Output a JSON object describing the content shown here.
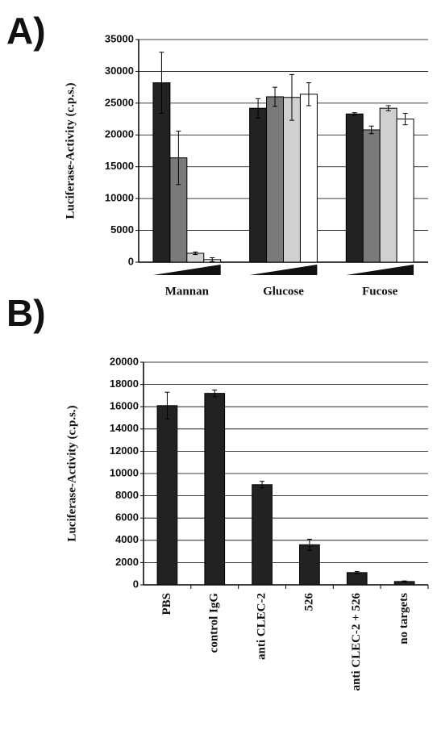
{
  "chart_data": [
    {
      "type": "bar",
      "panel_label": "A)",
      "y_label": "Luciferase-Activity (c.p.s.)",
      "categories": [
        "Mannan",
        "Glucose",
        "Fucose"
      ],
      "series": [
        {
          "color": "#222222",
          "values": [
            28200,
            24200,
            23300
          ],
          "errors": [
            4800,
            1500,
            200
          ]
        },
        {
          "color": "#7a7a7a",
          "values": [
            16400,
            26000,
            20800
          ],
          "errors": [
            4200,
            1500,
            600
          ]
        },
        {
          "color": "#d0d0d0",
          "values": [
            1400,
            25900,
            24200
          ],
          "errors": [
            200,
            3600,
            400
          ]
        },
        {
          "color": "#ffffff",
          "values": [
            400,
            26400,
            22500
          ],
          "errors": [
            300,
            1800,
            900
          ]
        }
      ],
      "ylim": [
        0,
        35000
      ],
      "yticks": [
        0,
        5000,
        10000,
        15000,
        20000,
        25000,
        30000,
        35000
      ],
      "grid": true
    },
    {
      "type": "bar",
      "panel_label": "B)",
      "y_label": "Luciferase-Activity (c.p.s.)",
      "categories": [
        "PBS",
        "control IgG",
        "anti CLEC-2",
        "526",
        "anti CLEC-2 + 526",
        "no targets"
      ],
      "series": [
        {
          "color": "#222222",
          "values": [
            16100,
            17200,
            9000,
            3600,
            1100,
            300
          ],
          "errors": [
            1200,
            300,
            300,
            500,
            100,
            50
          ]
        }
      ],
      "ylim": [
        0,
        20000
      ],
      "yticks": [
        0,
        2000,
        4000,
        6000,
        8000,
        10000,
        12000,
        14000,
        16000,
        18000,
        20000
      ],
      "grid": true
    }
  ]
}
